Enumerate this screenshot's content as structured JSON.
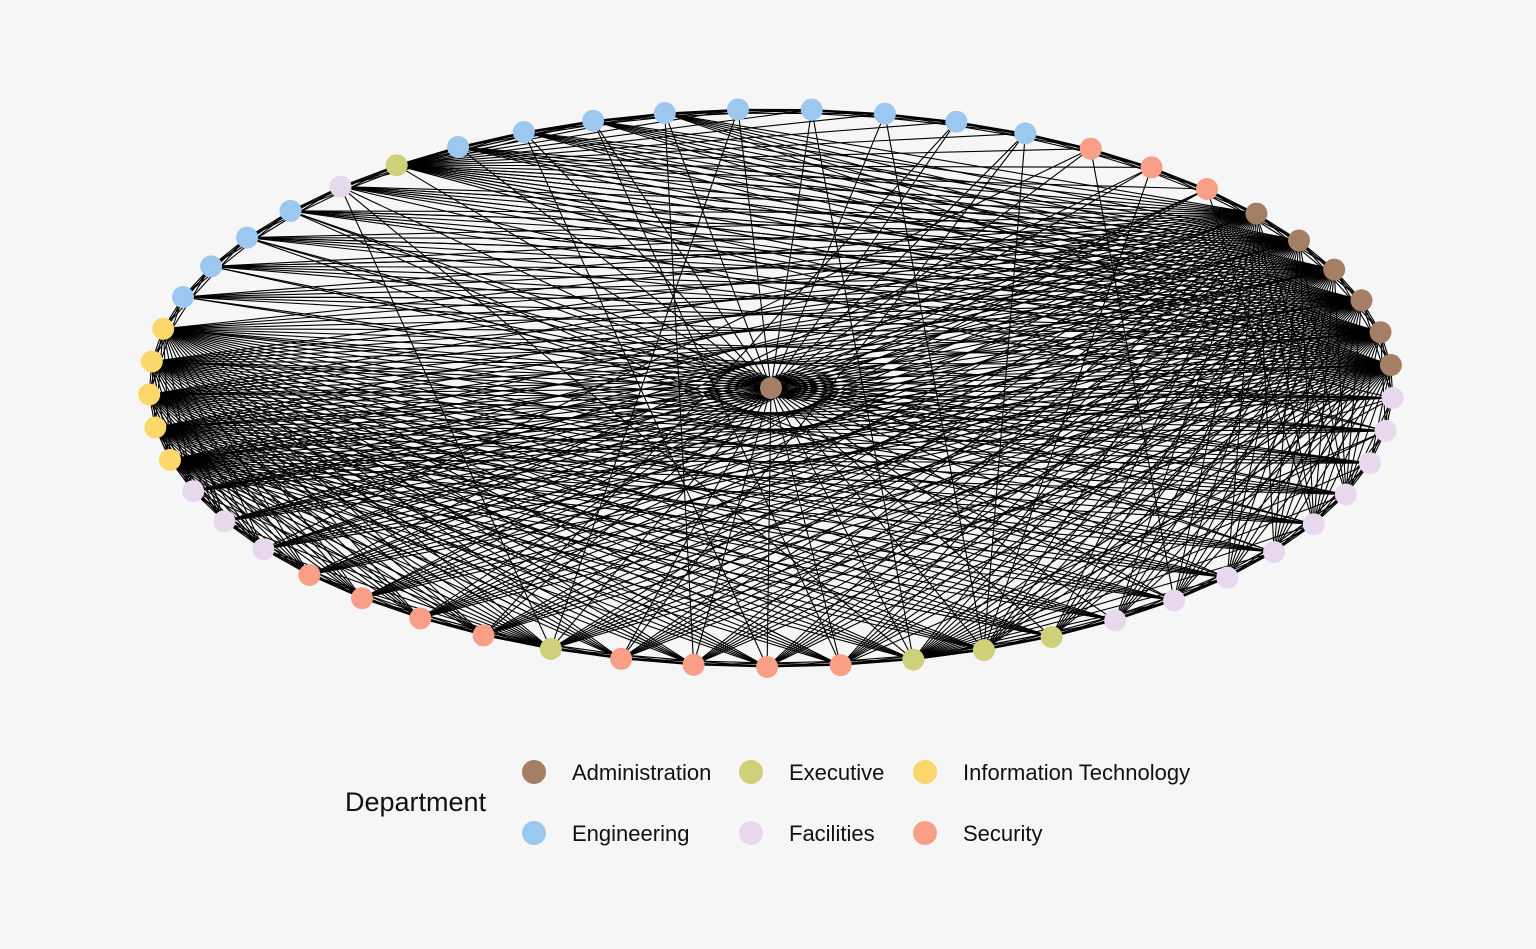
{
  "legend": {
    "title": "Department",
    "items": [
      {
        "label": "Administration",
        "color": "#a47e65"
      },
      {
        "label": "Executive",
        "color": "#cfd07a"
      },
      {
        "label": "Information Technology",
        "color": "#fcd76c"
      },
      {
        "label": "Engineering",
        "color": "#9cc7ee"
      },
      {
        "label": "Facilities",
        "color": "#e8d8ee"
      },
      {
        "label": "Security",
        "color": "#f99e87"
      }
    ]
  },
  "chart_data": {
    "type": "network",
    "layout": "circle",
    "legend_placement": "bottom",
    "ring": [
      "Executive",
      "Engineering",
      "Engineering",
      "Engineering",
      "Engineering",
      "Engineering",
      "Engineering",
      "Engineering",
      "Engineering",
      "Engineering",
      "Security",
      "Security",
      "Security",
      "Administration",
      "Administration",
      "Administration",
      "Administration",
      "Administration",
      "Administration",
      "Facilities",
      "Facilities",
      "Facilities",
      "Facilities",
      "Facilities",
      "Facilities",
      "Facilities",
      "Facilities",
      "Facilities",
      "Executive",
      "Executive",
      "Executive",
      "Security",
      "Security",
      "Security",
      "Security",
      "Executive",
      "Security",
      "Security",
      "Security",
      "Security",
      "Facilities",
      "Facilities",
      "Facilities",
      "Information Technology",
      "Information Technology",
      "Information Technology",
      "Information Technology",
      "Information Technology",
      "Engineering",
      "Engineering",
      "Engineering",
      "Engineering",
      "Facilities"
    ],
    "center": "Administration",
    "hubs": [
      0,
      13,
      14,
      15,
      16,
      17,
      18,
      30,
      35,
      43,
      44,
      45,
      46,
      47
    ],
    "hub_groups": [
      {
        "group": [
          13,
          14,
          15,
          16,
          17,
          18
        ],
        "fan_start": 22,
        "fan_end": 57
      },
      {
        "group": [
          43,
          44,
          45,
          46,
          47
        ],
        "fan_start": 19,
        "fan_end": 43
      },
      {
        "group": [
          0
        ],
        "fan_start": 1,
        "fan_end": 20
      },
      {
        "group": [
          30
        ],
        "fan_start": 18,
        "fan_end": 29
      },
      {
        "group": [
          35
        ],
        "fan_start": 36,
        "fan_end": 43
      }
    ],
    "extra_edges": [
      [
        52,
        14
      ],
      [
        52,
        16
      ],
      [
        52,
        30
      ],
      [
        52,
        35
      ],
      [
        52,
        20
      ],
      [
        52,
        3
      ],
      [
        51,
        14
      ],
      [
        51,
        26
      ],
      [
        51,
        17
      ],
      [
        50,
        15
      ],
      [
        50,
        25
      ],
      [
        49,
        14
      ],
      [
        48,
        16
      ],
      [
        40,
        18
      ],
      [
        40,
        10
      ],
      [
        41,
        13
      ],
      [
        42,
        15
      ],
      [
        36,
        16
      ],
      [
        37,
        14
      ],
      [
        38,
        12
      ],
      [
        39,
        17
      ],
      [
        5,
        35
      ],
      [
        6,
        30
      ],
      [
        8,
        36
      ],
      [
        9,
        34
      ],
      [
        7,
        29
      ],
      [
        3,
        31
      ],
      [
        4,
        33
      ],
      [
        2,
        32
      ],
      [
        11,
        29
      ],
      [
        12,
        23
      ],
      [
        10,
        26
      ],
      [
        11,
        39
      ],
      [
        12,
        37
      ],
      [
        19,
        35
      ],
      [
        20,
        31
      ],
      [
        21,
        48
      ],
      [
        22,
        49
      ],
      [
        23,
        50
      ],
      [
        24,
        51
      ],
      [
        31,
        47
      ],
      [
        32,
        46
      ],
      [
        33,
        45
      ],
      [
        34,
        44
      ],
      [
        28,
        43
      ],
      [
        29,
        9
      ]
    ]
  }
}
